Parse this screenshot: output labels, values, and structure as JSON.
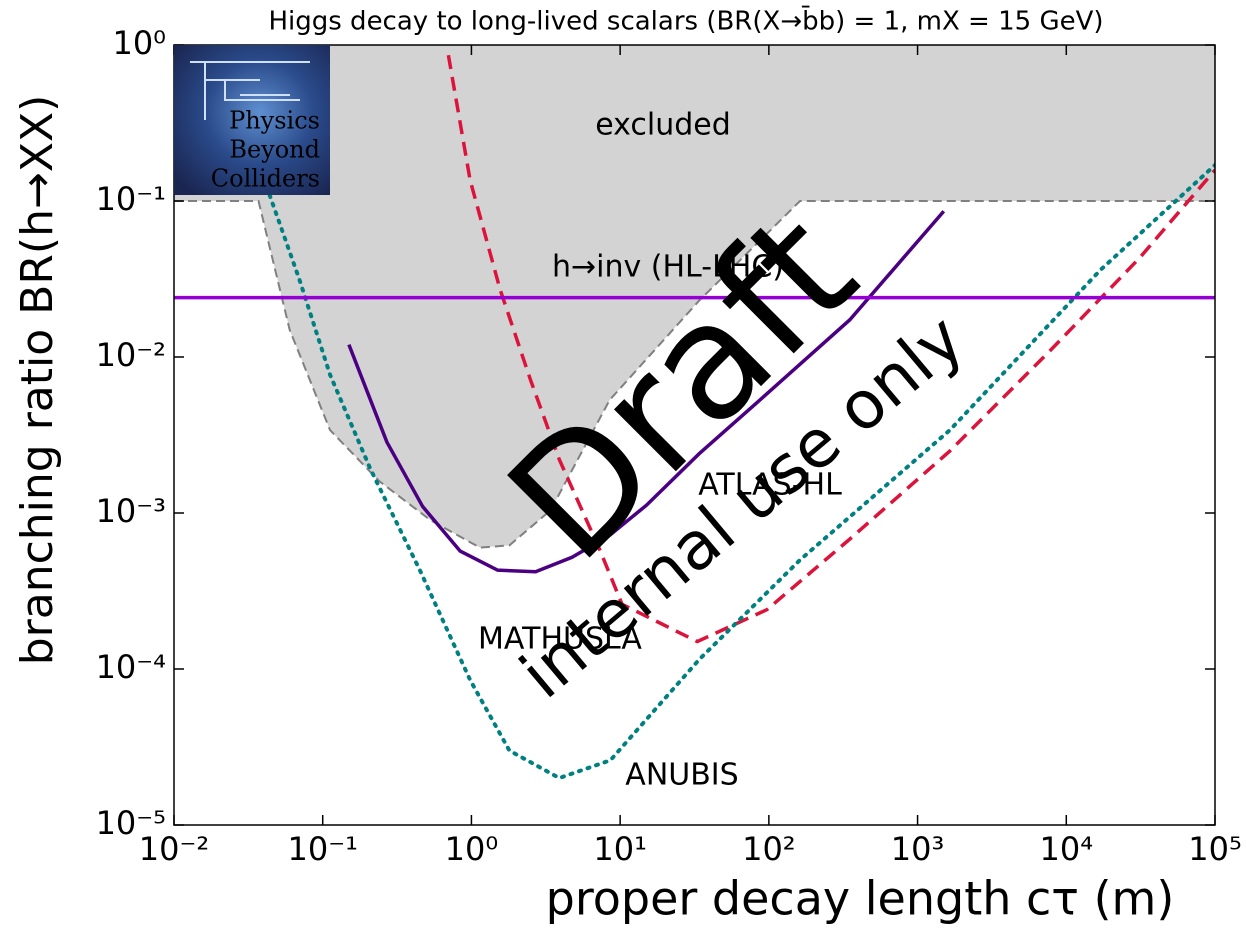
{
  "chart_data": {
    "type": "line",
    "title": "Higgs decay to long-lived scalars (BR(X→b̄b) = 1, mX = 15 GeV)",
    "xlabel": "proper decay length cτ (m)",
    "ylabel": "branching ratio BR(h→XX)",
    "log_x": true,
    "log_y": true,
    "xlim": [
      0.01,
      100000
    ],
    "ylim": [
      1e-05,
      1
    ],
    "xticks": [
      {
        "value": 0.01,
        "label": "10⁻²"
      },
      {
        "value": 0.1,
        "label": "10⁻¹"
      },
      {
        "value": 1,
        "label": "10⁰"
      },
      {
        "value": 10,
        "label": "10¹"
      },
      {
        "value": 100,
        "label": "10²"
      },
      {
        "value": 1000,
        "label": "10³"
      },
      {
        "value": 10000,
        "label": "10⁴"
      },
      {
        "value": 100000,
        "label": "10⁵"
      }
    ],
    "yticks": [
      {
        "value": 1e-05,
        "label": "10⁻⁵"
      },
      {
        "value": 0.0001,
        "label": "10⁻⁴"
      },
      {
        "value": 0.001,
        "label": "10⁻³"
      },
      {
        "value": 0.01,
        "label": "10⁻²"
      },
      {
        "value": 0.1,
        "label": "10⁻¹"
      },
      {
        "value": 1,
        "label": "10⁰"
      }
    ],
    "excluded": {
      "label": "excluded",
      "color": "#d3d3d3",
      "edge_color": "#808080",
      "x": [
        0.01,
        0.037,
        0.06,
        0.112,
        0.24,
        0.53,
        1.14,
        1.8,
        3.4,
        8.5,
        34,
        162,
        100000
      ],
      "values": [
        0.1,
        0.1,
        0.0149,
        0.0034,
        0.0016,
        0.0009,
        0.0006,
        0.00062,
        0.00104,
        0.0053,
        0.023,
        0.1,
        0.1
      ]
    },
    "series": [
      {
        "name": "ATLAS-HL",
        "color": "#4b0082",
        "style": "solid",
        "x": [
          0.15,
          0.27,
          0.47,
          0.84,
          1.5,
          2.7,
          4.75,
          8.5,
          15,
          34,
          87,
          350,
          1500
        ],
        "values": [
          0.012,
          0.00285,
          0.0011,
          0.00057,
          0.00043,
          0.00042,
          0.00052,
          0.00072,
          0.00112,
          0.0024,
          0.0053,
          0.0173,
          0.086
        ]
      },
      {
        "name": "MATHUSLA",
        "color": "#dc143c",
        "style": "dashed",
        "x": [
          0.7,
          0.98,
          1.56,
          2.5,
          3.9,
          7.3,
          10.3,
          33,
          97,
          350,
          1650,
          7800,
          31000,
          100000
        ],
        "values": [
          0.86,
          0.136,
          0.027,
          0.0071,
          0.0022,
          0.00058,
          0.00026,
          0.00015,
          0.00024,
          0.00068,
          0.0025,
          0.011,
          0.043,
          0.158
        ]
      },
      {
        "name": "ANUBIS",
        "color": "#008080",
        "style": "dotted",
        "x": [
          0.044,
          0.07,
          0.112,
          0.21,
          0.45,
          0.98,
          1.8,
          3.9,
          8.6,
          34,
          162,
          1650,
          16900,
          100000
        ],
        "values": [
          0.109,
          0.031,
          0.0077,
          0.0019,
          0.00043,
          8.5e-05,
          3e-05,
          2e-05,
          2.6e-05,
          0.000115,
          0.0005,
          0.0034,
          0.036,
          0.17
        ]
      },
      {
        "name": "h→inv (HL-LHC)",
        "color": "#9400d3",
        "style": "solid",
        "x": [
          0.01,
          100000
        ],
        "values": [
          0.024,
          0.024
        ]
      }
    ],
    "logo": [
      "Physics",
      "Beyond",
      "Colliders"
    ],
    "watermark": [
      "Draft",
      "internal use only"
    ]
  }
}
